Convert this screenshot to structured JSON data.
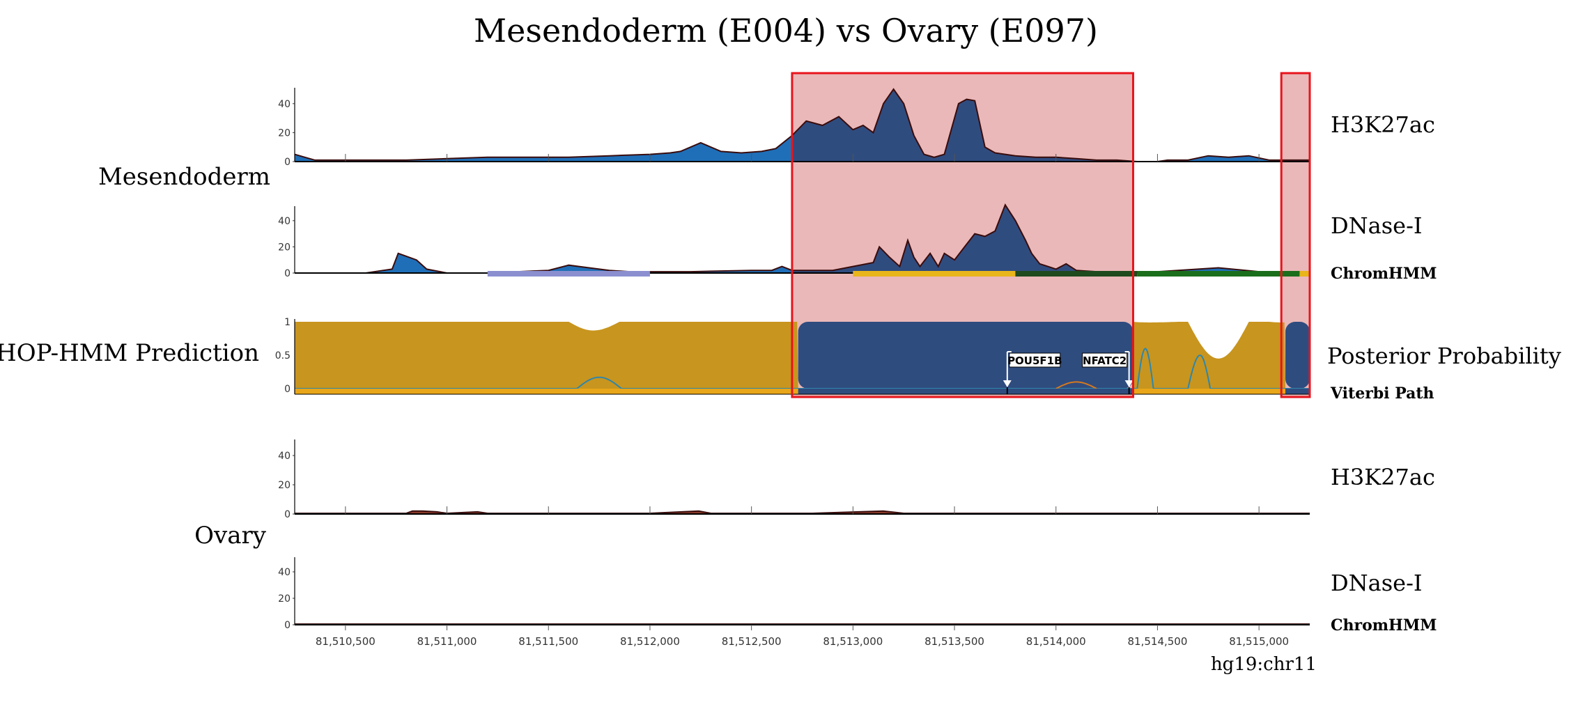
{
  "figure": {
    "title": "Mesendoderm (E004) vs Ovary (E097)",
    "group_labels": {
      "mesendoderm": "Mesendoderm",
      "hop_hmm": "HOP-HMM Prediction",
      "ovary": "Ovary"
    },
    "genome_label": "hg19:chr11"
  },
  "chart_data": {
    "type": "area",
    "x_axis": {
      "range": [
        81510250,
        81515250
      ],
      "tick_values": [
        81510500,
        81511000,
        81511500,
        81512000,
        81512500,
        81513000,
        81513500,
        81514000,
        81514500,
        81515000
      ],
      "tick_labels": [
        "81,510,500",
        "81,511,000",
        "81,511,500",
        "81,512,000",
        "81,512,500",
        "81,513,000",
        "81,513,500",
        "81,514,000",
        "81,514,500",
        "81,515,000"
      ]
    },
    "highlight_regions": [
      [
        81512700,
        81514380
      ],
      [
        81515110,
        81515250
      ]
    ],
    "tracks": [
      {
        "id": "mes_h3k27ac",
        "label": "H3K27ac",
        "ylim": [
          0,
          50
        ],
        "ytick_values": [
          0,
          20,
          40
        ],
        "ytick_labels": [
          "0",
          "20",
          "40"
        ],
        "x": [
          81510250,
          81510300,
          81510350,
          81510500,
          81510800,
          81511000,
          81511200,
          81511400,
          81511600,
          81511800,
          81512000,
          81512100,
          81512150,
          81512250,
          81512350,
          81512450,
          81512550,
          81512620,
          81512700,
          81512770,
          81512850,
          81512930,
          81513000,
          81513050,
          81513100,
          81513150,
          81513200,
          81513250,
          81513300,
          81513350,
          81513400,
          81513450,
          81513520,
          81513560,
          81513600,
          81513650,
          81513700,
          81513800,
          81513900,
          81514000,
          81514100,
          81514200,
          81514300,
          81514400,
          81514500,
          81514550,
          81514650,
          81514750,
          81514850,
          81514950,
          81515050,
          81515250
        ],
        "values": [
          5,
          3,
          1,
          1,
          1,
          2,
          3,
          3,
          3,
          4,
          5,
          6,
          7,
          13,
          7,
          6,
          7,
          9,
          18,
          28,
          25,
          31,
          22,
          25,
          20,
          40,
          50,
          40,
          18,
          5,
          3,
          5,
          40,
          43,
          42,
          10,
          6,
          4,
          3,
          3,
          2,
          1,
          1,
          0,
          0,
          1,
          1,
          4,
          3,
          4,
          1,
          1
        ],
        "color": "#1f6fb8",
        "highlight_color": "#2f4c7f"
      },
      {
        "id": "mes_dnase",
        "label": "DNase-I",
        "ylim": [
          0,
          50
        ],
        "ytick_values": [
          0,
          20,
          40
        ],
        "ytick_labels": [
          "0",
          "20",
          "40"
        ],
        "x": [
          81510250,
          81510600,
          81510730,
          81510760,
          81510850,
          81510900,
          81511000,
          81511200,
          81511500,
          81511600,
          81511700,
          81511800,
          81511900,
          81512200,
          81512500,
          81512600,
          81512650,
          81512700,
          81512900,
          81513000,
          81513100,
          81513130,
          81513180,
          81513230,
          81513270,
          81513300,
          81513330,
          81513380,
          81513420,
          81513450,
          81513500,
          81513550,
          81513600,
          81513650,
          81513700,
          81513750,
          81513800,
          81513850,
          81513880,
          81513920,
          81513960,
          81514000,
          81514050,
          81514100,
          81514200,
          81514500,
          81514800,
          81515000,
          81515250
        ],
        "values": [
          0,
          0,
          3,
          15,
          10,
          3,
          0,
          0,
          2,
          6,
          4,
          2,
          1,
          1,
          2,
          2,
          5,
          2,
          2,
          5,
          8,
          20,
          12,
          5,
          25,
          12,
          5,
          15,
          5,
          15,
          10,
          20,
          30,
          28,
          32,
          52,
          40,
          25,
          15,
          7,
          5,
          3,
          7,
          2,
          1,
          1,
          4,
          1,
          1
        ],
        "color": "#1f6fb8",
        "highlight_color": "#2f4c7f"
      },
      {
        "id": "ovary_h3k27ac",
        "label": "H3K27ac",
        "ylim": [
          0,
          50
        ],
        "ytick_values": [
          0,
          20,
          40
        ],
        "ytick_labels": [
          "0",
          "20",
          "40"
        ],
        "x": [
          81510250,
          81510800,
          81510830,
          81510880,
          81510950,
          81511000,
          81511150,
          81511200,
          81512000,
          81512240,
          81512300,
          81512800,
          81513150,
          81513250,
          81514400,
          81515250
        ],
        "values": [
          0.5,
          0.5,
          2,
          2,
          1.5,
          0.5,
          1.5,
          0.5,
          0.5,
          2,
          0.5,
          0.5,
          2,
          0.5,
          0.5,
          0.5
        ],
        "color": "#8a3a2a"
      },
      {
        "id": "ovary_dnase",
        "label": "DNase-I",
        "ylim": [
          0,
          50
        ],
        "ytick_values": [
          0,
          20,
          40
        ],
        "ytick_labels": [
          "0",
          "20",
          "40"
        ],
        "x": [
          81510250,
          81515250
        ],
        "values": [
          0.5,
          0.5
        ],
        "color": "#222222"
      }
    ],
    "chromhmm": {
      "label": "ChromHMM",
      "segments": [
        {
          "start": 81511200,
          "end": 81512000,
          "color": "#8b8fd0"
        },
        {
          "start": 81513000,
          "end": 81513800,
          "color": "#e8b51a"
        },
        {
          "start": 81513800,
          "end": 81514400,
          "color": "#1e4a1e"
        },
        {
          "start": 81514400,
          "end": 81515200,
          "color": "#1b6e1b"
        },
        {
          "start": 81515200,
          "end": 81515250,
          "color": "#e8b51a"
        }
      ]
    },
    "ovary_chromhmm": {
      "label": "ChromHMM"
    },
    "posterior_probability": {
      "label": "Posterior Probability",
      "viterbi_label": "Viterbi Path",
      "ylim": [
        0,
        1
      ],
      "ytick_values": [
        0,
        0.5,
        1
      ],
      "ytick_labels": [
        "0",
        "0.5",
        "1"
      ],
      "enhancer_segments": [
        [
          81512730,
          81514380
        ],
        [
          81515130,
          81515250
        ]
      ],
      "background_color": "#c8951e",
      "enhancer_color": "#2f4c7f",
      "viterbi_background_color": "#e8a618",
      "viterbi_enhancer_color": "#2f4c7f",
      "background_dips": [
        [
          81511600,
          81511720,
          81511850,
          0.87
        ],
        [
          81514370,
          81514460,
          81514600,
          0.99
        ],
        [
          81514650,
          81514800,
          81514950,
          0.45
        ],
        [
          81515050,
          81515110,
          81515160,
          0.99
        ]
      ],
      "line_color": "#2e86ab",
      "line_bumps": [
        [
          81511640,
          81511750,
          81511860,
          0.17
        ],
        [
          81514400,
          81514440,
          81514480,
          0.6
        ],
        [
          81514650,
          81514710,
          81514760,
          0.5
        ]
      ],
      "orange_color": "#d4781e",
      "orange_bump": [
        81514000,
        81514100,
        81514200,
        0.1
      ],
      "motif_markers": [
        {
          "label": "POU5F1B",
          "position": 81513760
        },
        {
          "label": "NFATC2",
          "position": 81514360
        }
      ]
    }
  }
}
